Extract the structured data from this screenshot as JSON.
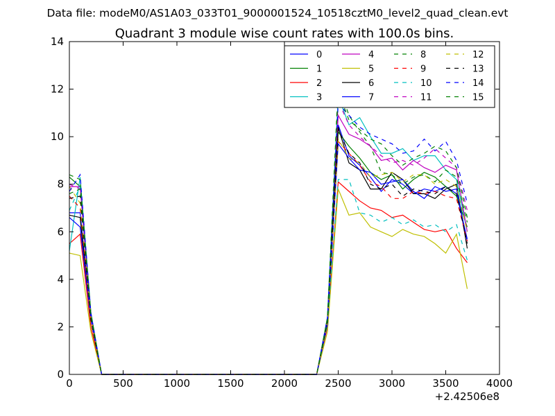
{
  "suptitle": "Data file: modeM0/AS1A03_033T01_9000001524_10518cztM0_level2_quad_clean.evt",
  "chart_data": {
    "type": "line",
    "title": "Quadrant 3 module wise count rates with 100.0s bins.",
    "xlabel": "",
    "ylabel": "",
    "xlim": [
      0,
      4000
    ],
    "ylim": [
      0,
      14
    ],
    "x_offset_label": "+2.42506e8",
    "xticks": [
      0,
      500,
      1000,
      1500,
      2000,
      2500,
      3000,
      3500,
      4000
    ],
    "yticks": [
      0,
      2,
      4,
      6,
      8,
      10,
      12,
      14
    ],
    "legend_position": "top-right",
    "x": [
      0,
      100,
      200,
      300,
      400,
      500,
      600,
      700,
      800,
      900,
      1000,
      1100,
      1200,
      1300,
      1400,
      1500,
      1600,
      1700,
      1800,
      1900,
      2000,
      2100,
      2200,
      2300,
      2400,
      2500,
      2600,
      2700,
      2800,
      2900,
      3000,
      3100,
      3200,
      3300,
      3400,
      3500,
      3600,
      3700
    ],
    "series": [
      {
        "name": "0",
        "color": "#0000ff",
        "dash": "solid",
        "head": [
          6.8,
          6.8,
          2.4
        ],
        "tail": [
          2.2,
          10.5,
          9.2,
          8.8,
          8.3,
          7.7,
          8.2,
          8.0,
          7.6,
          7.8,
          7.7,
          7.9,
          7.6,
          5.7
        ]
      },
      {
        "name": "1",
        "color": "#008000",
        "dash": "solid",
        "head": [
          8.3,
          7.9,
          2.4
        ],
        "tail": [
          2.2,
          10.2,
          9.6,
          9.1,
          8.5,
          8.2,
          8.4,
          7.8,
          8.2,
          8.5,
          8.3,
          7.9,
          7.5,
          6.2
        ]
      },
      {
        "name": "2",
        "color": "#ff0000",
        "dash": "solid",
        "head": [
          5.5,
          5.9,
          2.0
        ],
        "tail": [
          2.0,
          8.1,
          7.7,
          7.3,
          7.0,
          6.9,
          6.6,
          6.7,
          6.4,
          6.1,
          6.0,
          6.1,
          5.3,
          4.7
        ]
      },
      {
        "name": "3",
        "color": "#00bfbf",
        "dash": "solid",
        "head": [
          5.2,
          8.3,
          2.6
        ],
        "tail": [
          2.4,
          11.7,
          10.5,
          10.8,
          10.0,
          9.3,
          9.3,
          9.5,
          9.0,
          9.2,
          9.2,
          8.6,
          8.2,
          6.0
        ]
      },
      {
        "name": "4",
        "color": "#bf00bf",
        "dash": "solid",
        "head": [
          7.9,
          7.9,
          2.5
        ],
        "tail": [
          2.3,
          10.9,
          10.1,
          9.9,
          9.6,
          9.0,
          9.1,
          8.6,
          9.0,
          8.7,
          8.5,
          8.8,
          8.6,
          6.0
        ]
      },
      {
        "name": "5",
        "color": "#bfbf00",
        "dash": "solid",
        "head": [
          5.1,
          5.0,
          1.8
        ],
        "tail": [
          1.8,
          7.8,
          6.7,
          6.8,
          6.2,
          6.0,
          5.8,
          6.1,
          5.9,
          5.8,
          5.5,
          5.1,
          5.9,
          3.6
        ]
      },
      {
        "name": "6",
        "color": "#000000",
        "dash": "solid",
        "head": [
          6.7,
          6.6,
          2.3
        ],
        "tail": [
          2.3,
          10.4,
          8.9,
          8.6,
          7.8,
          7.8,
          8.5,
          8.2,
          7.6,
          7.6,
          7.4,
          7.8,
          8.0,
          5.3
        ]
      },
      {
        "name": "7",
        "color": "#0000ff",
        "dash": "solid",
        "head": [
          6.6,
          6.2,
          2.3
        ],
        "tail": [
          2.1,
          9.7,
          9.1,
          8.6,
          8.5,
          8.0,
          8.1,
          8.2,
          7.7,
          7.4,
          7.9,
          7.7,
          7.8,
          5.6
        ]
      },
      {
        "name": "8",
        "color": "#008000",
        "dash": "dashed",
        "head": [
          8.4,
          8.2,
          2.6
        ],
        "tail": [
          2.4,
          12.2,
          10.9,
          10.2,
          9.6,
          8.5,
          8.4,
          8.0,
          8.3,
          8.4,
          8.1,
          8.6,
          8.3,
          6.4
        ]
      },
      {
        "name": "9",
        "color": "#ff0000",
        "dash": "dashed",
        "head": [
          7.5,
          7.0,
          2.3
        ],
        "tail": [
          2.2,
          9.8,
          9.3,
          8.8,
          8.1,
          7.9,
          7.4,
          7.4,
          7.7,
          7.6,
          7.7,
          7.5,
          7.4,
          5.6
        ]
      },
      {
        "name": "10",
        "color": "#00bfbf",
        "dash": "dashed",
        "head": [
          6.9,
          7.9,
          2.3
        ],
        "tail": [
          2.1,
          8.2,
          8.2,
          6.8,
          6.7,
          6.4,
          6.6,
          6.3,
          6.5,
          6.2,
          6.3,
          6.0,
          6.3,
          4.8
        ]
      },
      {
        "name": "11",
        "color": "#bf00bf",
        "dash": "dashed",
        "head": [
          8.0,
          7.8,
          2.5
        ],
        "tail": [
          2.3,
          11.5,
          10.5,
          10.0,
          9.6,
          9.2,
          8.9,
          9.0,
          8.8,
          9.1,
          9.5,
          9.1,
          8.7,
          6.9
        ]
      },
      {
        "name": "12",
        "color": "#bfbf00",
        "dash": "dashed",
        "head": [
          7.9,
          7.2,
          2.4
        ],
        "tail": [
          2.2,
          9.9,
          9.1,
          8.9,
          8.3,
          8.4,
          8.5,
          8.1,
          8.4,
          8.4,
          8.0,
          8.2,
          7.9,
          6.0
        ]
      },
      {
        "name": "13",
        "color": "#000000",
        "dash": "dashed",
        "head": [
          7.4,
          7.5,
          2.3
        ],
        "tail": [
          2.2,
          10.3,
          9.3,
          8.9,
          8.0,
          7.8,
          8.0,
          7.5,
          7.8,
          7.7,
          7.6,
          7.9,
          7.6,
          5.5
        ]
      },
      {
        "name": "14",
        "color": "#0000ff",
        "dash": "dashed",
        "head": [
          7.7,
          8.4,
          2.6
        ],
        "tail": [
          2.4,
          11.4,
          10.9,
          10.4,
          10.1,
          9.9,
          9.7,
          9.3,
          9.4,
          9.9,
          9.4,
          9.8,
          9.0,
          7.2
        ]
      },
      {
        "name": "15",
        "color": "#008000",
        "dash": "dashed",
        "head": [
          7.6,
          7.8,
          2.5
        ],
        "tail": [
          2.3,
          11.9,
          10.7,
          10.3,
          9.9,
          9.7,
          9.2,
          8.8,
          9.1,
          9.3,
          9.6,
          9.4,
          8.7,
          6.6
        ]
      }
    ]
  }
}
